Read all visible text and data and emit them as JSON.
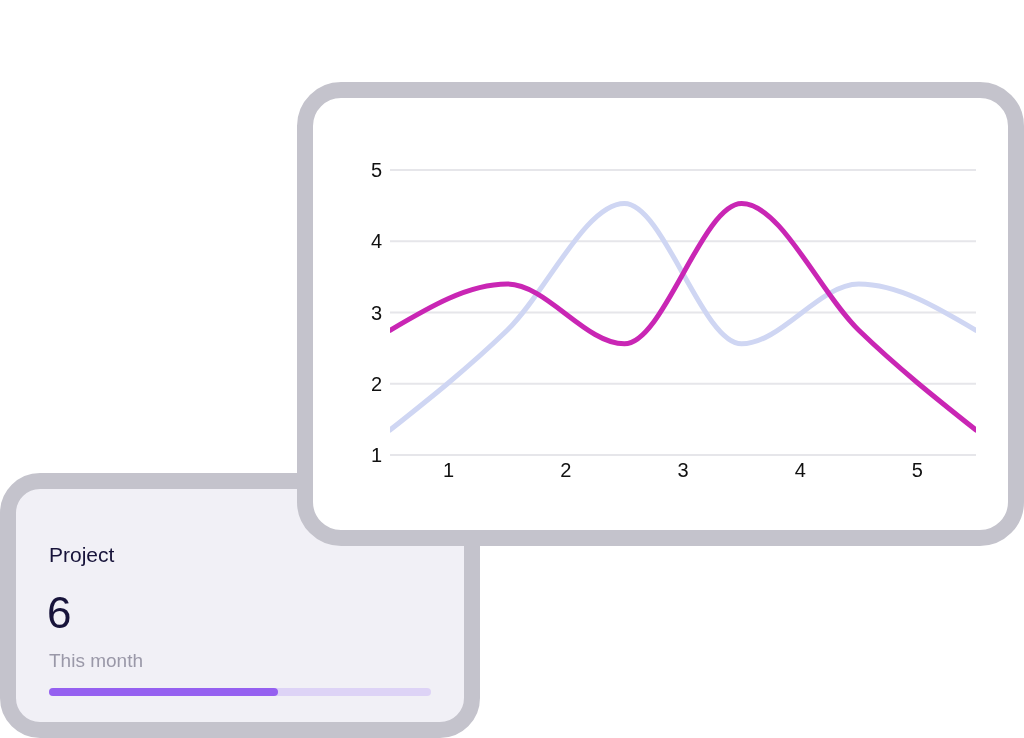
{
  "chart_data": [
    {
      "type": "line",
      "x": [
        0.5,
        1.5,
        2.5,
        3.5,
        4.5,
        5.5
      ],
      "xlim": [
        0.5,
        5.5
      ],
      "xticks": [
        1,
        2,
        3,
        4,
        5
      ],
      "ylim": [
        1,
        5
      ],
      "yticks": [
        1,
        2,
        3,
        4,
        5
      ],
      "grid": "y",
      "series": [
        {
          "color": "#cfd6f3",
          "values": [
            1.35,
            2.75,
            4.53,
            2.56,
            3.4,
            2.75
          ]
        },
        {
          "color": "#c926b4",
          "values": [
            2.75,
            3.4,
            2.56,
            4.53,
            2.75,
            1.35
          ]
        }
      ]
    },
    {
      "type": "other",
      "title": "Project",
      "annotations": [
        "6",
        "This month"
      ]
    }
  ]
}
